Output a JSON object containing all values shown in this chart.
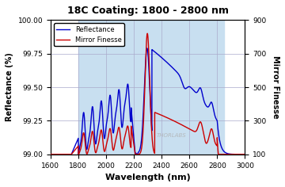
{
  "title": "18C Coating: 1800 - 2800 nm",
  "xlabel": "Wavelength (nm)",
  "ylabel_left": "Reflectance (%)",
  "ylabel_right": "Mirror Finesse",
  "xlim": [
    1600,
    3000
  ],
  "ylim_left": [
    99.0,
    100.0
  ],
  "ylim_right": [
    100,
    900
  ],
  "xticks": [
    1600,
    1800,
    2000,
    2200,
    2400,
    2600,
    2800,
    3000
  ],
  "yticks_left": [
    99.0,
    99.25,
    99.5,
    99.75,
    100.0
  ],
  "yticks_right": [
    100,
    300,
    500,
    700,
    900
  ],
  "shaded_region": [
    1800,
    2850
  ],
  "shaded_color": "#c8dff0",
  "background_color": "#ffffff",
  "grid_color": "#aaaacc",
  "blue_color": "#0000cc",
  "red_color": "#cc0000",
  "watermark": "THORLABS",
  "watermark_color": "#b0b0b0",
  "legend_loc": "upper left"
}
